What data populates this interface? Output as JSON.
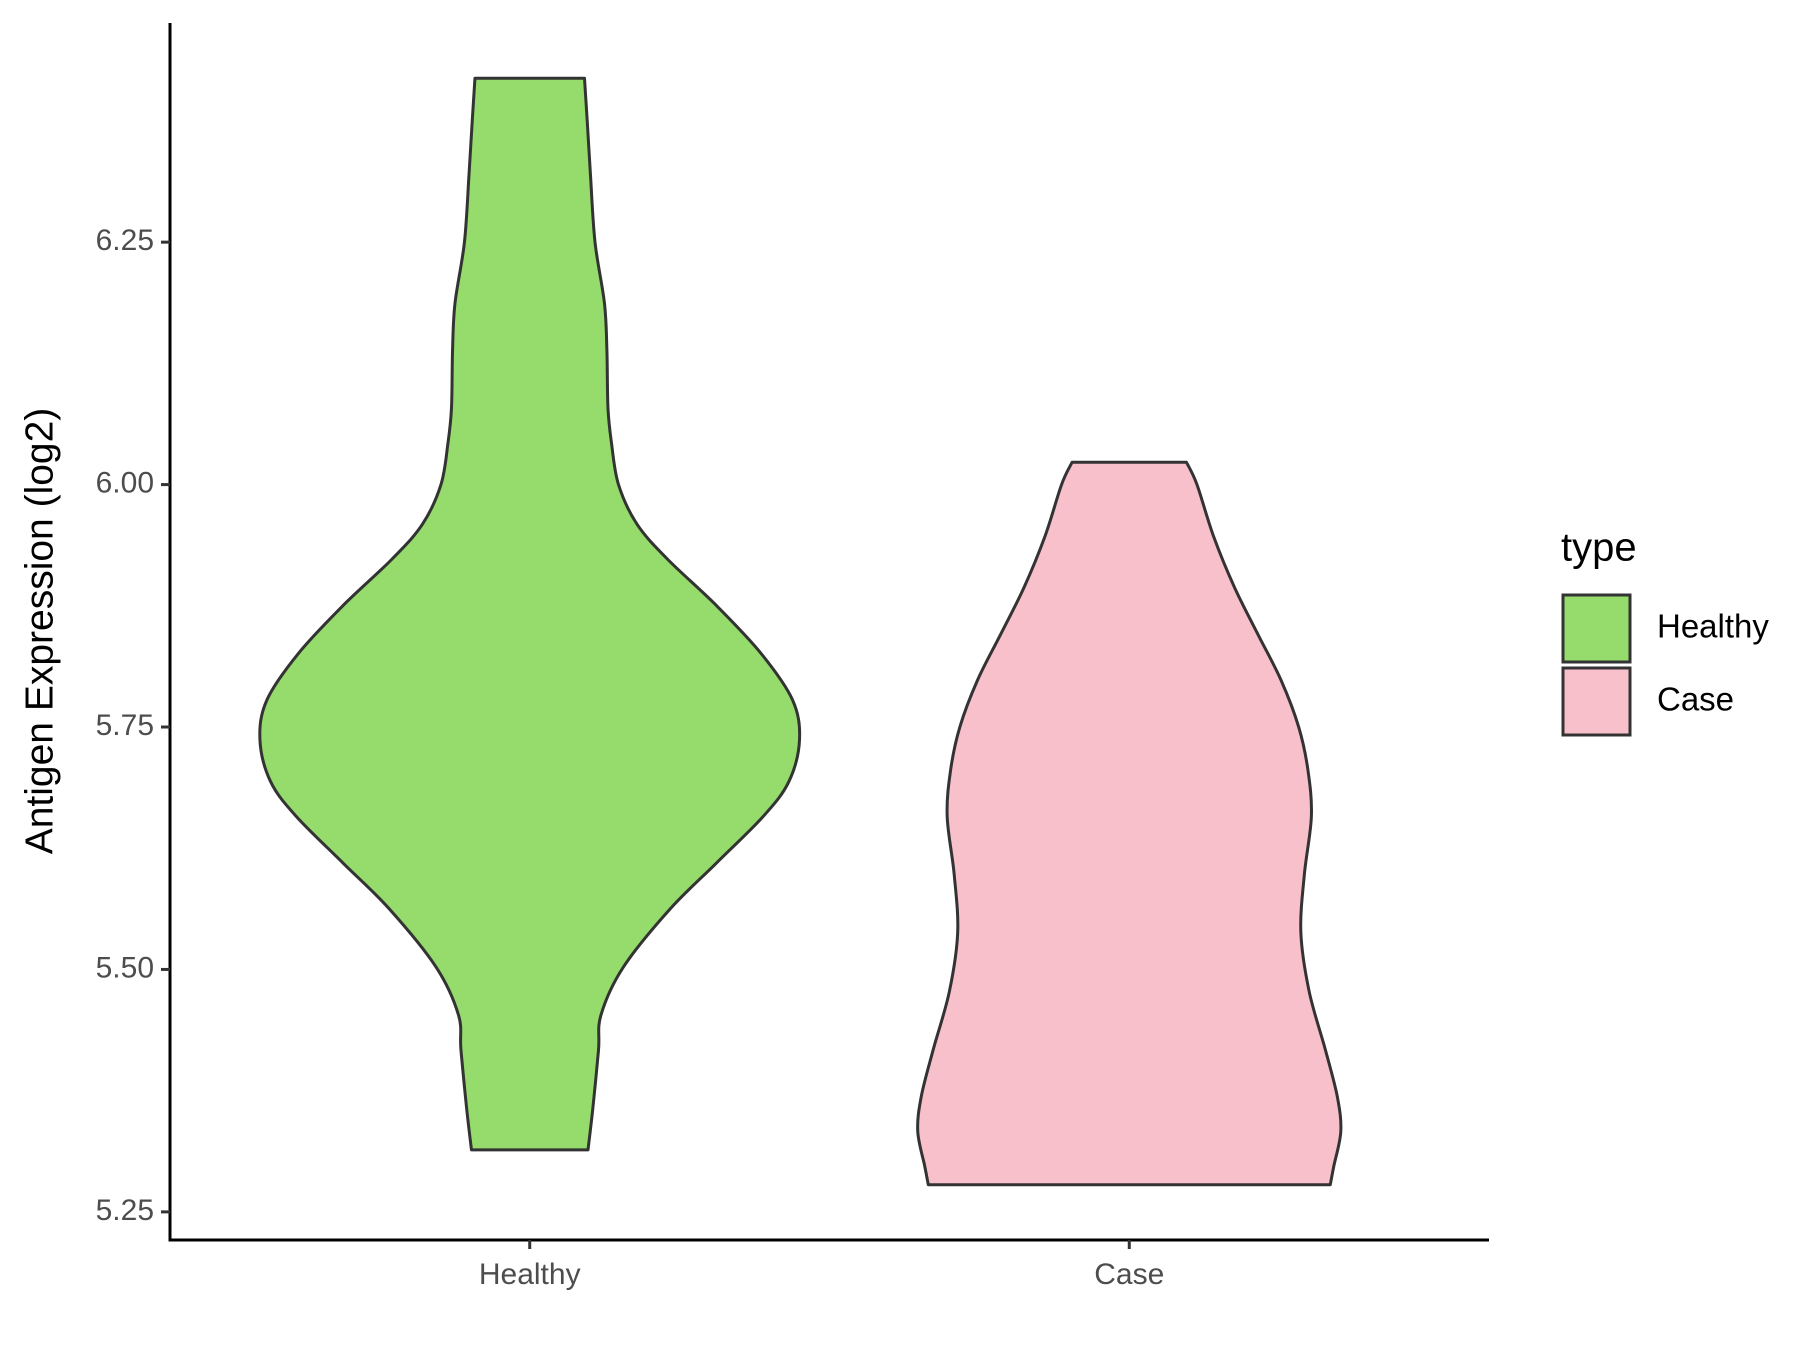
{
  "chart_data": {
    "type": "violin",
    "y_label": "Antigen Expression (log2)",
    "categories": [
      "Healthy",
      "Case"
    ],
    "ylim": [
      5.221,
      6.476
    ],
    "yticks": [
      5.25,
      {
        "value": 5.5,
        "label": "5.50"
      },
      5.75,
      {
        "value": 6,
        "label": "6.00"
      },
      6.25
    ],
    "legend_title": "type",
    "legend": "right",
    "series": [
      {
        "name": "Healthy",
        "color": "#95dc6c",
        "y": [
          6.419,
          6.38,
          6.32,
          6.25,
          6.187,
          6.139,
          6.079,
          6.043,
          6.0,
          5.959,
          5.923,
          5.875,
          5.826,
          5.778,
          5.737,
          5.694,
          5.658,
          5.61,
          5.562,
          5.502,
          5.453,
          5.417,
          5.357,
          5.314
        ],
        "width": [
          0.203,
          0.212,
          0.225,
          0.242,
          0.277,
          0.286,
          0.29,
          0.303,
          0.329,
          0.398,
          0.511,
          0.693,
          0.857,
          0.974,
          1,
          0.961,
          0.866,
          0.693,
          0.519,
          0.346,
          0.264,
          0.255,
          0.234,
          0.216
        ]
      },
      {
        "name": "Case",
        "color": "#f7c0cb",
        "y": [
          6.023,
          6.0,
          5.947,
          5.894,
          5.846,
          5.798,
          5.75,
          5.706,
          5.658,
          5.598,
          5.538,
          5.477,
          5.417,
          5.369,
          5.333,
          5.297,
          5.278
        ],
        "width": [
          0.212,
          0.251,
          0.312,
          0.39,
          0.476,
          0.563,
          0.628,
          0.662,
          0.675,
          0.649,
          0.636,
          0.667,
          0.727,
          0.771,
          0.784,
          0.758,
          0.745
        ]
      }
    ]
  }
}
